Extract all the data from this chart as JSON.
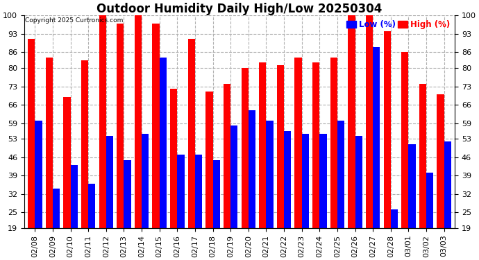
{
  "title": "Outdoor Humidity Daily High/Low 20250304",
  "copyright": "Copyright 2025 Curtronics.com",
  "legend_low": "Low (%)",
  "legend_high": "High (%)",
  "dates": [
    "02/08",
    "02/09",
    "02/10",
    "02/11",
    "02/12",
    "02/13",
    "02/14",
    "02/15",
    "02/16",
    "02/17",
    "02/18",
    "02/19",
    "02/20",
    "02/21",
    "02/22",
    "02/23",
    "02/24",
    "02/25",
    "02/26",
    "02/27",
    "02/28",
    "03/01",
    "03/02",
    "03/03"
  ],
  "high": [
    91,
    84,
    69,
    83,
    100,
    97,
    100,
    97,
    72,
    91,
    71,
    74,
    80,
    82,
    81,
    84,
    82,
    84,
    100,
    100,
    94,
    86,
    74,
    70
  ],
  "low": [
    60,
    34,
    43,
    36,
    54,
    45,
    55,
    84,
    47,
    47,
    45,
    58,
    64,
    60,
    56,
    55,
    55,
    60,
    54,
    88,
    26,
    51,
    40,
    52
  ],
  "ymin": 19,
  "ymax": 100,
  "yticks": [
    19,
    25,
    32,
    39,
    46,
    53,
    59,
    66,
    73,
    80,
    86,
    93,
    100
  ],
  "bar_width": 0.4,
  "high_color": "#ff0000",
  "low_color": "#0000ff",
  "bg_color": "#ffffff",
  "grid_color": "#b0b0b0",
  "title_fontsize": 12,
  "tick_fontsize": 8
}
